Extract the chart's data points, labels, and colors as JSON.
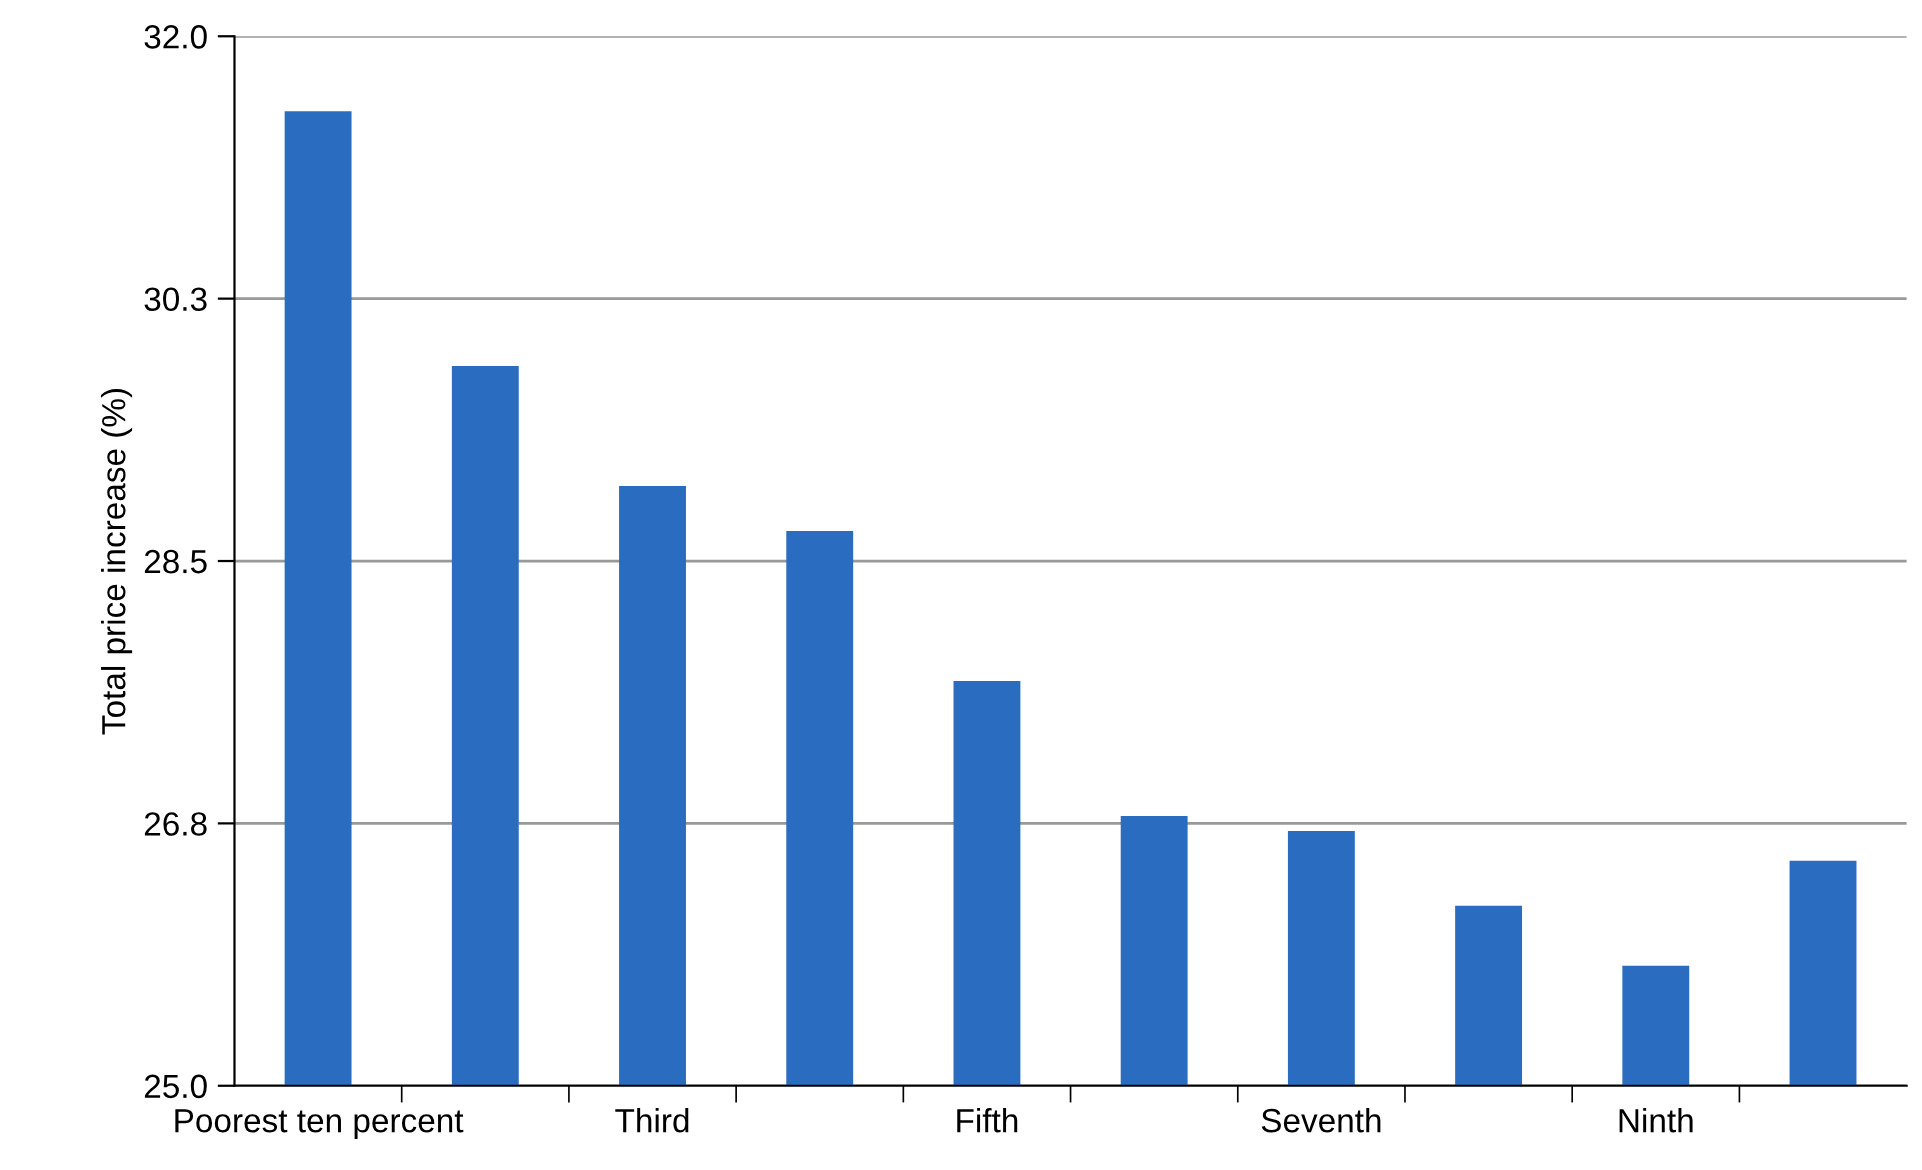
{
  "chart_data": {
    "type": "bar",
    "ylabel": "Total price increase (%)",
    "categories": [
      "Poorest ten percent",
      null,
      "Third",
      null,
      "Fifth",
      null,
      "Seventh",
      null,
      "Ninth",
      null
    ],
    "values": [
      31.5,
      29.8,
      29.0,
      28.7,
      27.7,
      26.8,
      26.7,
      26.2,
      25.8,
      26.5
    ],
    "color": "#2a6cc0",
    "ylim": [
      25.0,
      32.0
    ],
    "yticks": [
      {
        "value": 25.0,
        "label": "25.0"
      },
      {
        "value": 26.75,
        "label": "26.8"
      },
      {
        "value": 28.5,
        "label": "28.5"
      },
      {
        "value": 30.25,
        "label": "30.3"
      },
      {
        "value": 32.0,
        "label": "32.0"
      }
    ],
    "grid": "y"
  }
}
